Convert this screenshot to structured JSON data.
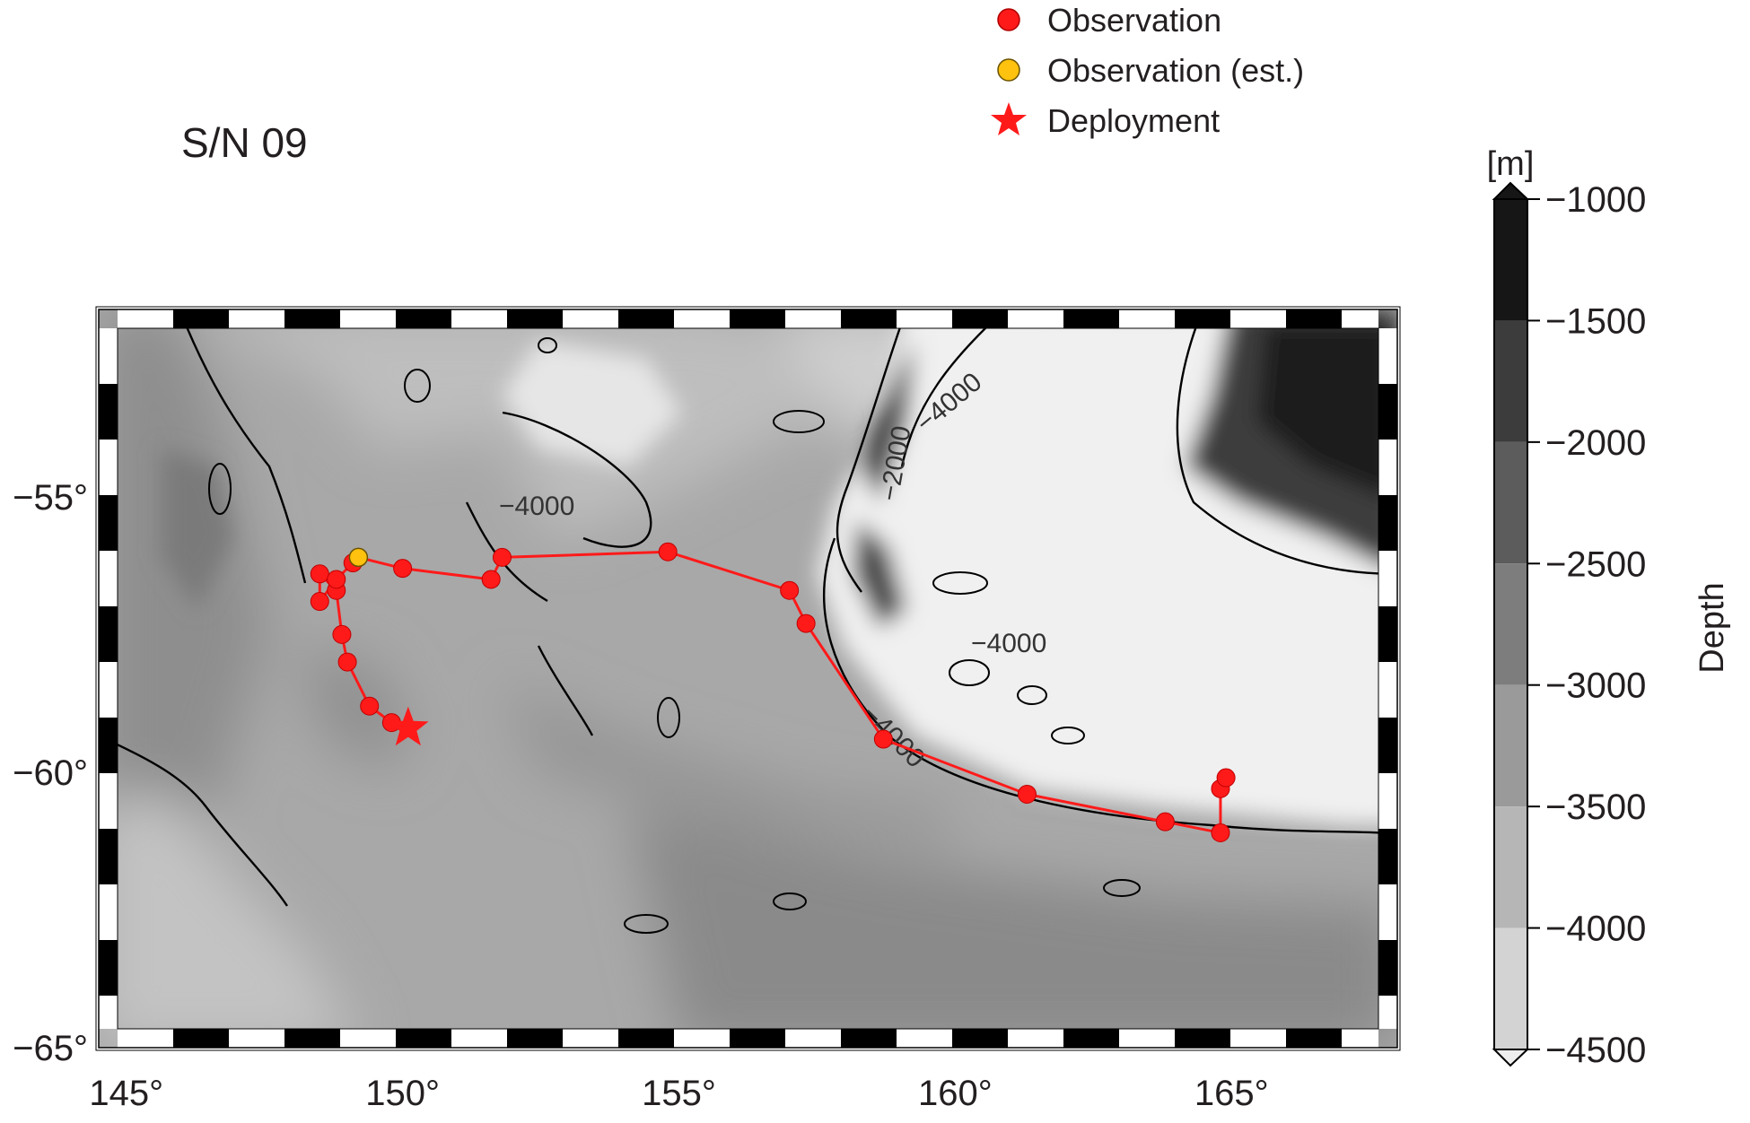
{
  "title": "S/N 09",
  "legend": {
    "items": [
      {
        "label": "Observation",
        "marker": "circle",
        "color": "#ff1a1a"
      },
      {
        "label": "Observation (est.)",
        "marker": "circle",
        "color": "#ffc20e"
      },
      {
        "label": "Deployment",
        "marker": "star",
        "color": "#ff1a1a"
      }
    ]
  },
  "map": {
    "lon_range": [
      144.5,
      168
    ],
    "lat_range": [
      -65,
      -51.6
    ],
    "lon_ticks": [
      "145°",
      "150°",
      "155°",
      "160°",
      "165°"
    ],
    "lat_ticks": [
      "−55°",
      "−60°",
      "−65°"
    ],
    "track_color": "#ff1a1a",
    "contour_labels": [
      "−4000",
      "−4000",
      "−4000",
      "−2000",
      "−4000"
    ]
  },
  "colorbar": {
    "unit": "[m]",
    "label": "Depth",
    "ticks": [
      "−1000",
      "−1500",
      "−2000",
      "−2500",
      "−3000",
      "−3500",
      "−4000",
      "−4500"
    ],
    "colors": [
      "#161616",
      "#3c3c3c",
      "#5c5c5c",
      "#7d7d7d",
      "#9a9a9a",
      "#b6b6b6",
      "#d3d3d3",
      "#eeeeee"
    ]
  },
  "chart_data": {
    "type": "scatter",
    "title": "S/N 09",
    "xlabel": "",
    "ylabel": "",
    "xlim": [
      144.5,
      168
    ],
    "ylim": [
      -65,
      -51.6
    ],
    "series": [
      {
        "name": "Observation",
        "x": [
          149.8,
          149.4,
          149.0,
          148.9,
          148.8,
          148.5,
          148.5,
          148.8,
          149.1,
          150.0,
          151.6,
          151.8,
          154.8,
          157.0,
          157.3,
          158.7,
          161.3,
          163.8,
          164.8,
          164.8,
          164.9
        ],
        "y": [
          -59.1,
          -58.8,
          -58.0,
          -57.5,
          -56.7,
          -56.4,
          -56.9,
          -56.5,
          -56.2,
          -56.3,
          -56.5,
          -56.1,
          -56.0,
          -56.7,
          -57.3,
          -59.4,
          -60.4,
          -60.9,
          -61.1,
          -60.3,
          -60.1
        ]
      },
      {
        "name": "Observation (est.)",
        "x": [
          149.2
        ],
        "y": [
          -56.1
        ]
      },
      {
        "name": "Deployment",
        "x": [
          150.1
        ],
        "y": [
          -59.2
        ]
      }
    ]
  }
}
